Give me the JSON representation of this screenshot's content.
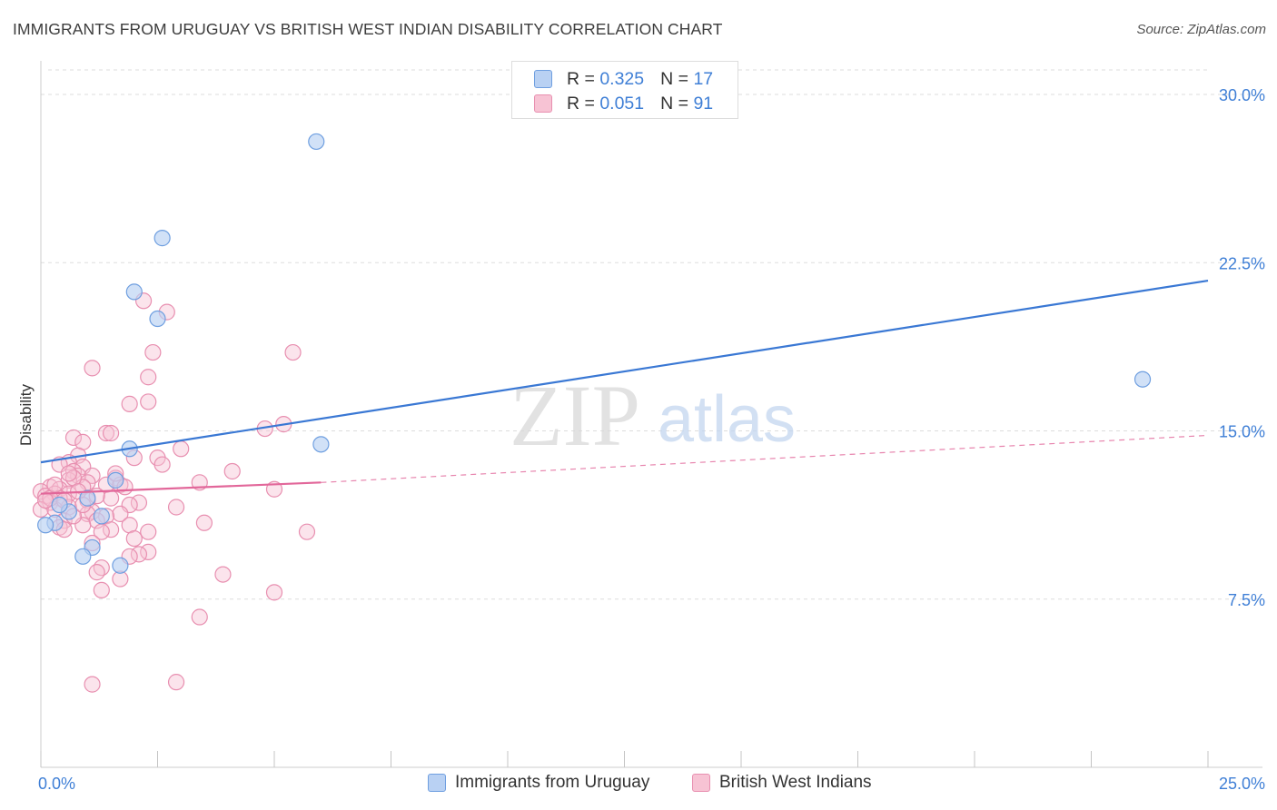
{
  "title": "IMMIGRANTS FROM URUGUAY VS BRITISH WEST INDIAN DISABILITY CORRELATION CHART",
  "source": "Source: ZipAtlas.com",
  "watermark": {
    "zip": "ZIP",
    "atlas": "atlas"
  },
  "colors": {
    "blue": "#3a78d4",
    "blue_fill": "#b9d1f3",
    "blue_stroke": "#6f9fe0",
    "pink": "#e2679a",
    "pink_fill": "#f7c3d4",
    "pink_stroke": "#e88fb0",
    "tick_label": "#3f7fd6",
    "grid": "#dddddd"
  },
  "stats_legend": [
    {
      "r_label": "R =",
      "r_value": "0.325",
      "n_label": "N =",
      "n_value": "17",
      "color": "blue"
    },
    {
      "r_label": "R =",
      "r_value": "0.051",
      "n_label": "N =",
      "n_value": "91",
      "color": "pink"
    }
  ],
  "bottom_legend": [
    {
      "label": "Immigrants from Uruguay",
      "color": "blue"
    },
    {
      "label": "British West Indians",
      "color": "pink"
    }
  ],
  "chart_data": {
    "type": "scatter",
    "title": "IMMIGRANTS FROM URUGUAY VS BRITISH WEST INDIAN DISABILITY CORRELATION CHART",
    "xlabel": "",
    "ylabel": "Disability",
    "xlim": [
      0,
      25
    ],
    "ylim": [
      0,
      31.5
    ],
    "x_tick_labels": [
      "0.0%",
      "25.0%"
    ],
    "x_tick_values": [
      0,
      25
    ],
    "y_tick_labels": [
      "7.5%",
      "15.0%",
      "22.5%",
      "30.0%"
    ],
    "y_tick_values": [
      7.5,
      15,
      22.5,
      30
    ],
    "grid": true,
    "legend_position": "top-center",
    "series": [
      {
        "name": "Immigrants from Uruguay",
        "color": "blue",
        "trend": {
          "x": [
            0,
            25
          ],
          "y": [
            13.6,
            21.7
          ],
          "style": "solid"
        },
        "points": [
          [
            5.9,
            27.9
          ],
          [
            2.6,
            23.6
          ],
          [
            2.0,
            21.2
          ],
          [
            2.5,
            20.0
          ],
          [
            23.6,
            17.3
          ],
          [
            6.0,
            14.4
          ],
          [
            1.9,
            14.2
          ],
          [
            1.6,
            12.8
          ],
          [
            1.0,
            12.0
          ],
          [
            0.6,
            11.4
          ],
          [
            1.3,
            11.2
          ],
          [
            0.3,
            10.9
          ],
          [
            0.1,
            10.8
          ],
          [
            1.1,
            9.8
          ],
          [
            0.9,
            9.4
          ],
          [
            1.7,
            9.0
          ],
          [
            0.4,
            11.7
          ]
        ]
      },
      {
        "name": "British West Indians",
        "color": "pink",
        "trend": {
          "x": [
            0,
            6.0
          ],
          "y": [
            12.2,
            12.7
          ],
          "style": "solid",
          "extended": {
            "x": [
              6.0,
              25
            ],
            "y": [
              12.7,
              14.8
            ],
            "style": "dashed"
          }
        },
        "points": [
          [
            2.2,
            20.8
          ],
          [
            2.7,
            20.3
          ],
          [
            5.4,
            18.5
          ],
          [
            2.4,
            18.5
          ],
          [
            1.1,
            17.8
          ],
          [
            2.3,
            17.4
          ],
          [
            2.3,
            16.3
          ],
          [
            1.9,
            16.2
          ],
          [
            5.2,
            15.3
          ],
          [
            4.8,
            15.1
          ],
          [
            1.4,
            14.9
          ],
          [
            1.5,
            14.9
          ],
          [
            0.7,
            14.7
          ],
          [
            0.9,
            14.5
          ],
          [
            3.0,
            14.2
          ],
          [
            0.8,
            13.9
          ],
          [
            2.5,
            13.8
          ],
          [
            2.0,
            13.8
          ],
          [
            0.6,
            13.6
          ],
          [
            0.4,
            13.5
          ],
          [
            0.9,
            13.4
          ],
          [
            4.1,
            13.2
          ],
          [
            0.7,
            13.2
          ],
          [
            0.8,
            13.0
          ],
          [
            1.1,
            13.0
          ],
          [
            1.6,
            12.9
          ],
          [
            0.6,
            12.8
          ],
          [
            1.0,
            12.7
          ],
          [
            1.4,
            12.6
          ],
          [
            3.4,
            12.7
          ],
          [
            1.7,
            12.6
          ],
          [
            0.2,
            12.5
          ],
          [
            0.9,
            12.5
          ],
          [
            0.4,
            12.4
          ],
          [
            5.0,
            12.4
          ],
          [
            0.0,
            12.3
          ],
          [
            0.3,
            12.2
          ],
          [
            0.6,
            12.2
          ],
          [
            0.1,
            12.1
          ],
          [
            0.4,
            12.0
          ],
          [
            1.5,
            12.0
          ],
          [
            1.0,
            11.9
          ],
          [
            2.1,
            11.8
          ],
          [
            0.2,
            11.8
          ],
          [
            1.9,
            11.7
          ],
          [
            0.6,
            11.6
          ],
          [
            2.9,
            11.6
          ],
          [
            0.0,
            11.5
          ],
          [
            0.3,
            11.5
          ],
          [
            1.1,
            11.4
          ],
          [
            1.7,
            11.3
          ],
          [
            1.0,
            11.3
          ],
          [
            1.4,
            11.2
          ],
          [
            0.5,
            11.0
          ],
          [
            1.2,
            11.0
          ],
          [
            3.5,
            10.9
          ],
          [
            0.9,
            10.8
          ],
          [
            1.9,
            10.8
          ],
          [
            0.4,
            10.7
          ],
          [
            1.5,
            10.6
          ],
          [
            0.5,
            10.6
          ],
          [
            2.3,
            10.5
          ],
          [
            5.7,
            10.5
          ],
          [
            1.3,
            10.5
          ],
          [
            2.0,
            10.2
          ],
          [
            1.1,
            10.0
          ],
          [
            2.3,
            9.6
          ],
          [
            2.1,
            9.5
          ],
          [
            1.9,
            9.4
          ],
          [
            1.3,
            8.9
          ],
          [
            1.2,
            8.7
          ],
          [
            3.9,
            8.6
          ],
          [
            1.7,
            8.4
          ],
          [
            1.3,
            7.9
          ],
          [
            5.0,
            7.8
          ],
          [
            3.4,
            6.7
          ],
          [
            1.1,
            3.7
          ],
          [
            2.9,
            3.8
          ],
          [
            0.7,
            12.9
          ],
          [
            1.6,
            13.1
          ],
          [
            0.2,
            12.0
          ],
          [
            0.8,
            12.3
          ],
          [
            0.5,
            11.9
          ],
          [
            1.2,
            12.1
          ],
          [
            0.3,
            12.6
          ],
          [
            0.7,
            11.2
          ],
          [
            1.8,
            12.5
          ],
          [
            2.6,
            13.5
          ],
          [
            0.9,
            11.7
          ],
          [
            0.1,
            11.9
          ],
          [
            0.6,
            13.1
          ]
        ]
      }
    ]
  }
}
